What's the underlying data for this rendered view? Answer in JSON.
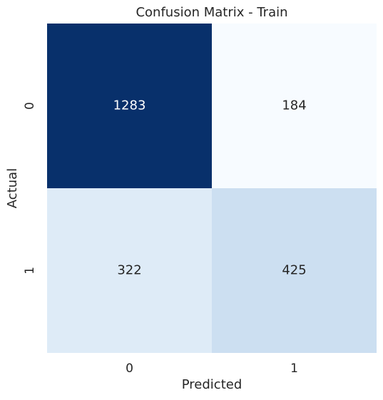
{
  "chart_data": {
    "type": "heatmap",
    "title": "Confusion Matrix - Train",
    "x_label": "Predicted",
    "y_label": "Actual",
    "x_categories": [
      "0",
      "1"
    ],
    "y_categories": [
      "0",
      "1"
    ],
    "values": [
      [
        1283,
        184
      ],
      [
        322,
        425
      ]
    ],
    "colormap": "Blues"
  }
}
